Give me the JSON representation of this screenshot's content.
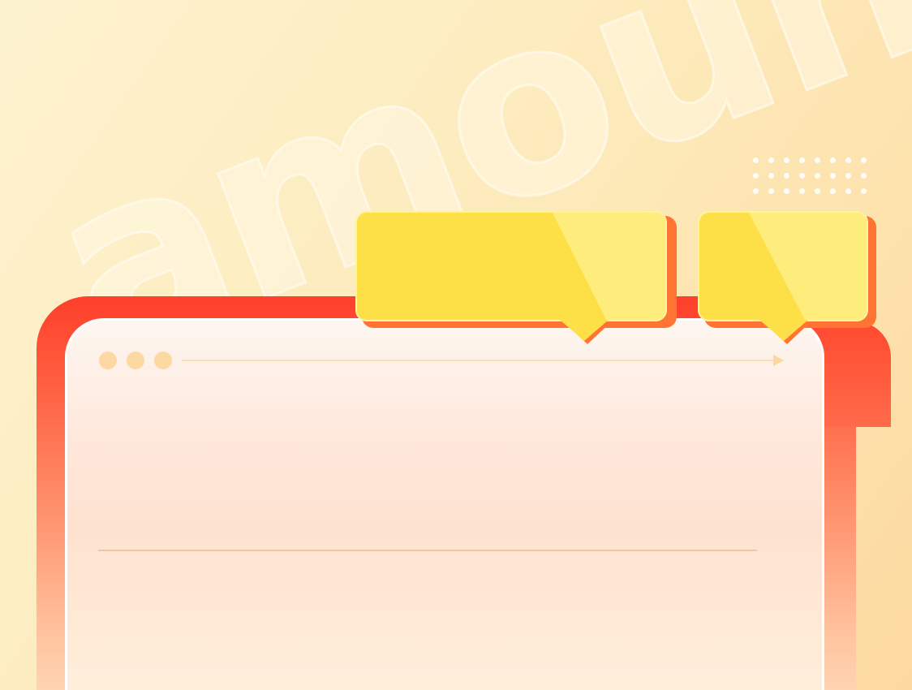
{
  "background": {
    "watermark_text": "amount",
    "colors": {
      "background_light": "#fdf2cf",
      "background_warm": "#fcd99f",
      "frame_red": "#ff3f2b",
      "bubble_yellow": "#fde047",
      "bubble_shadow_orange": "#ff7433",
      "window_dot": "#fdd8a2"
    }
  },
  "window": {
    "controls": [
      "dot",
      "dot",
      "dot"
    ],
    "progress_icon": "arrow-right-icon"
  },
  "bubbles": [
    {
      "name": "large-speech-bubble",
      "text": ""
    },
    {
      "name": "small-speech-bubble",
      "text": ""
    }
  ]
}
